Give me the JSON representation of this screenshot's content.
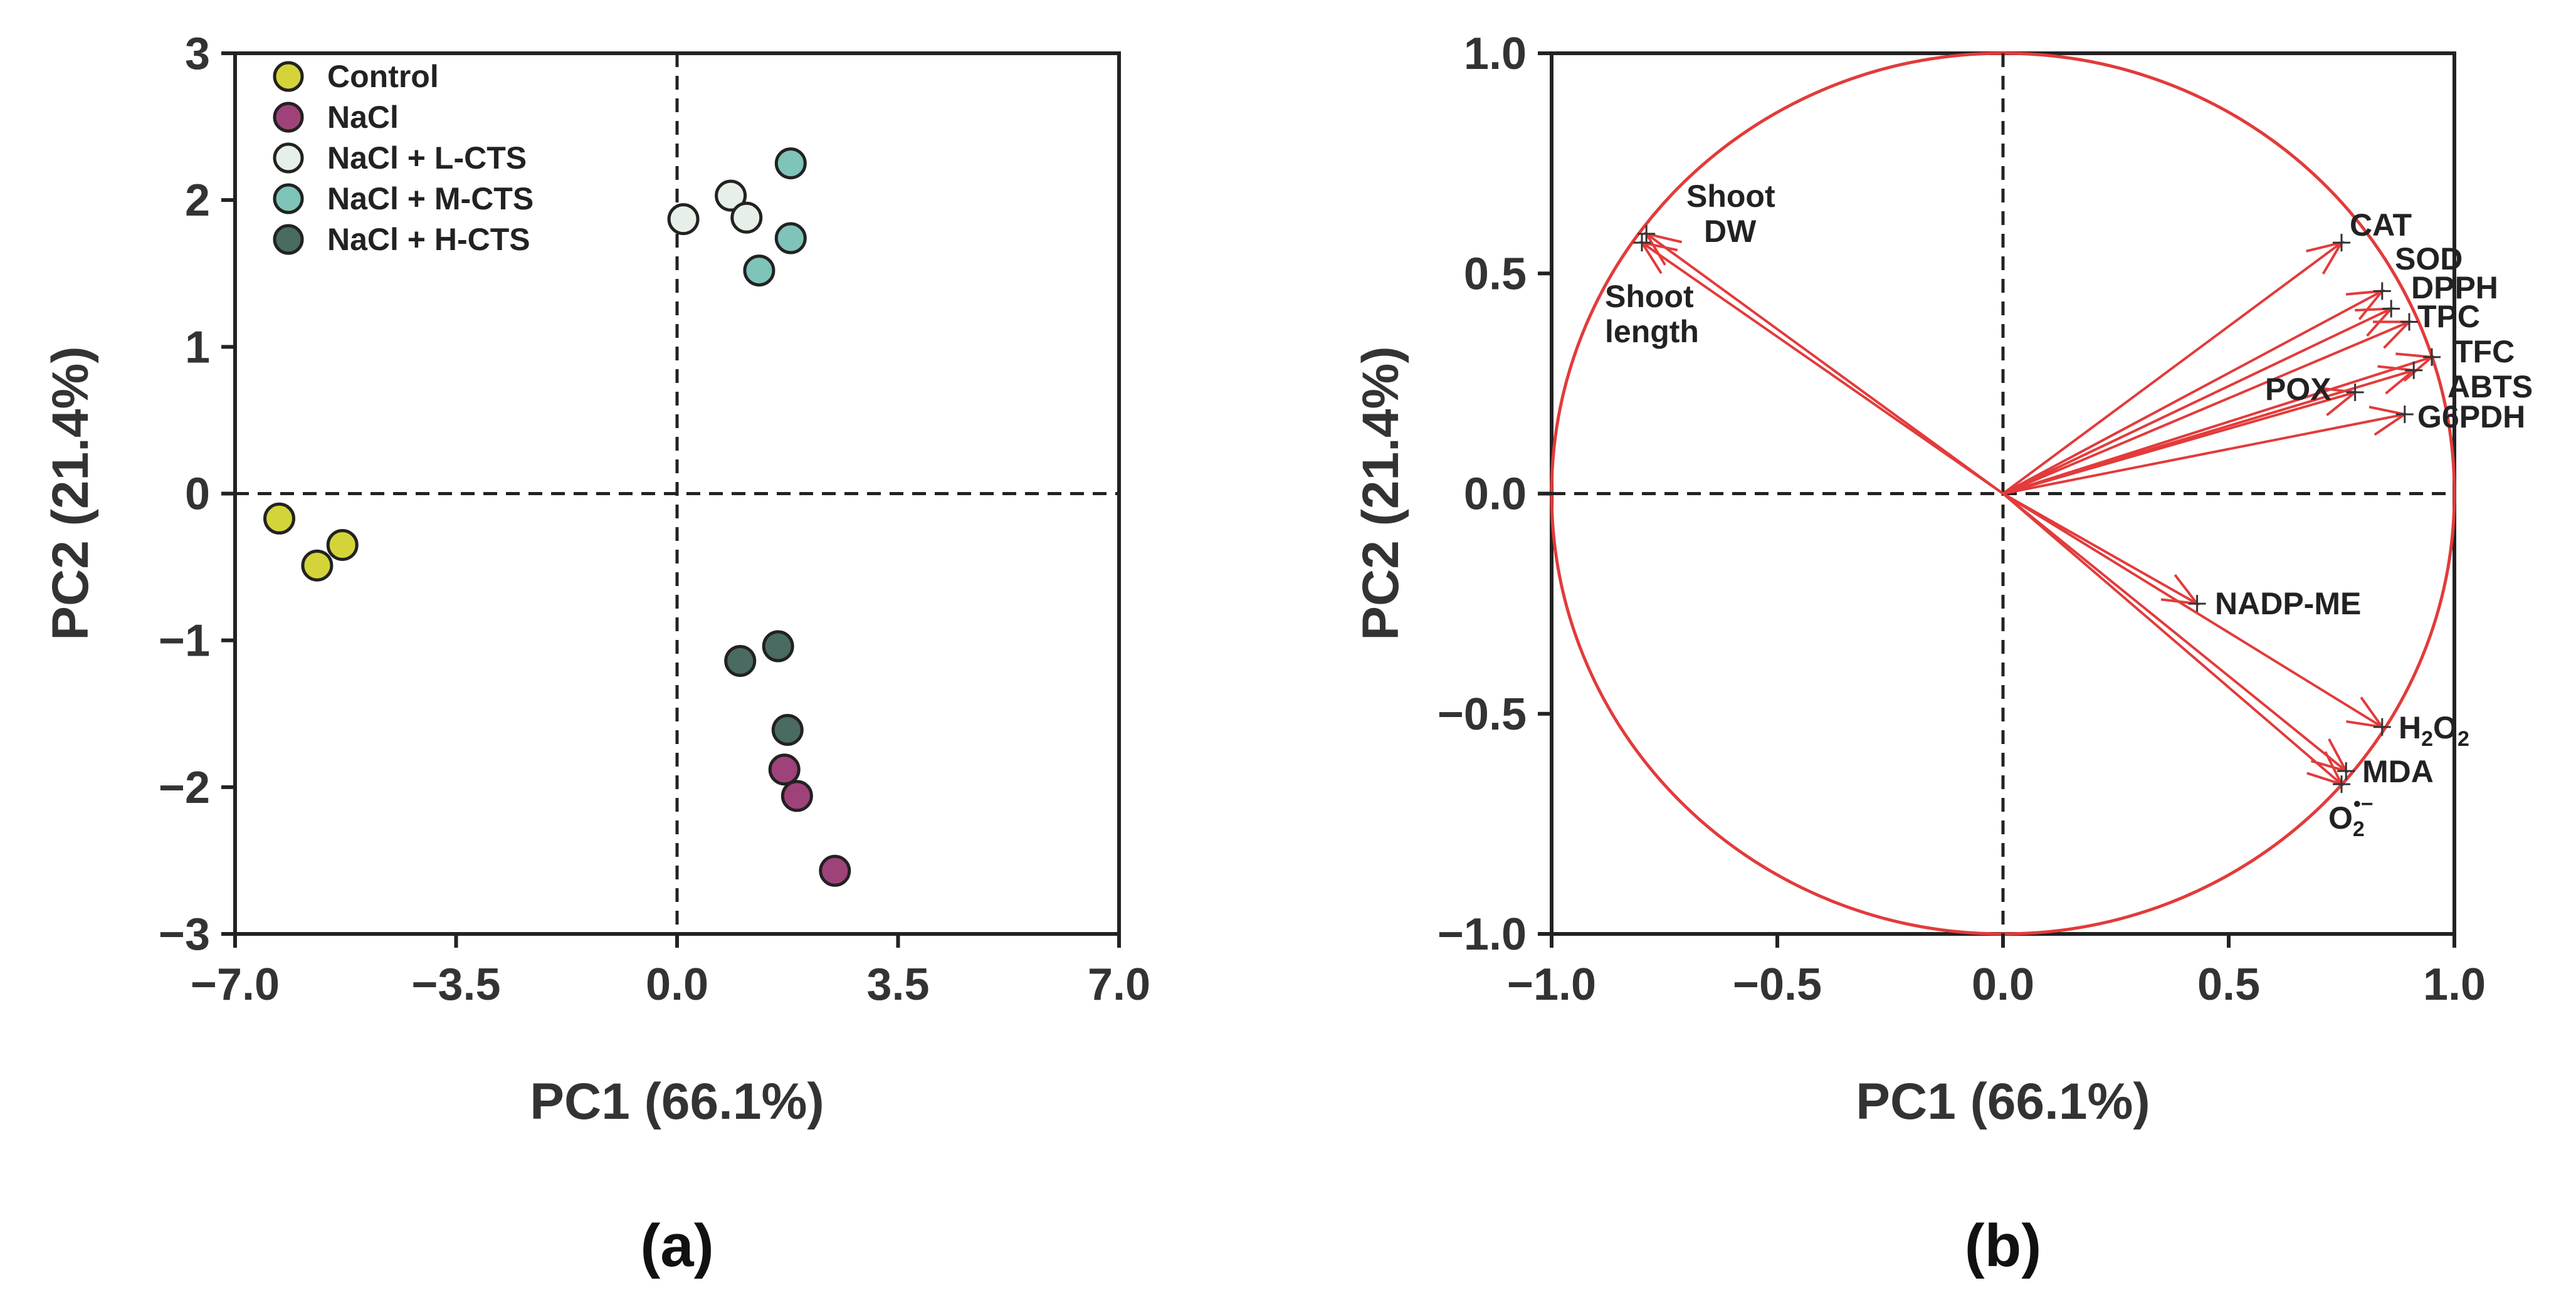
{
  "chart_data": [
    {
      "type": "scatter",
      "panel_label": "(a)",
      "xlabel": "PC1 (66.1%)",
      "ylabel": "PC2 (21.4%)",
      "xlim": [
        -7.0,
        7.0
      ],
      "ylim": [
        -3,
        3
      ],
      "xticks": [
        -7.0,
        -3.5,
        0.0,
        3.5,
        7.0
      ],
      "xtick_labels": [
        "−7.0",
        "−3.5",
        "0.0",
        "3.5",
        "7.0"
      ],
      "yticks": [
        -3,
        -2,
        -1,
        0,
        1,
        2,
        3
      ],
      "ytick_labels": [
        "−3",
        "−2",
        "−1",
        "0",
        "1",
        "2",
        "3"
      ],
      "legend_position": "top-left",
      "series": [
        {
          "name": "Control",
          "color": "#d4d43a",
          "points": [
            [
              -6.3,
              -0.17
            ],
            [
              -5.7,
              -0.49
            ],
            [
              -5.3,
              -0.35
            ]
          ]
        },
        {
          "name": "NaCl",
          "color": "#a0427a",
          "points": [
            [
              1.7,
              -1.88
            ],
            [
              1.9,
              -2.06
            ],
            [
              2.5,
              -2.57
            ]
          ]
        },
        {
          "name": "NaCl + L-CTS",
          "color": "#e6efe8",
          "points": [
            [
              0.1,
              1.87
            ],
            [
              0.85,
              2.03
            ],
            [
              1.1,
              1.88
            ]
          ]
        },
        {
          "name": "NaCl + M-CTS",
          "color": "#7fc4b8",
          "points": [
            [
              1.8,
              2.25
            ],
            [
              1.8,
              1.74
            ],
            [
              1.3,
              1.52
            ]
          ]
        },
        {
          "name": "NaCl + H-CTS",
          "color": "#4a6b62",
          "points": [
            [
              1.6,
              -1.04
            ],
            [
              1.0,
              -1.14
            ],
            [
              1.75,
              -1.61
            ]
          ]
        }
      ]
    },
    {
      "type": "scatter",
      "subtype": "loading-plot",
      "panel_label": "(b)",
      "xlabel": "PC1 (66.1%)",
      "ylabel": "PC2 (21.4%)",
      "xlim": [
        -1.0,
        1.0
      ],
      "ylim": [
        -1.0,
        1.0
      ],
      "xticks": [
        -1.0,
        -0.5,
        0.0,
        0.5,
        1.0
      ],
      "xtick_labels": [
        "−1.0",
        "−0.5",
        "0.0",
        "0.5",
        "1.0"
      ],
      "yticks": [
        -1.0,
        -0.5,
        0.0,
        0.5,
        1.0
      ],
      "ytick_labels": [
        "−1.0",
        "−0.5",
        "0.0",
        "0.5",
        "1.0"
      ],
      "unit_circle": true,
      "vectors": [
        {
          "name": "Shoot DW",
          "x": -0.79,
          "y": 0.59
        },
        {
          "name": "Shoot length",
          "x": -0.8,
          "y": 0.57
        },
        {
          "name": "CAT",
          "x": 0.75,
          "y": 0.57
        },
        {
          "name": "SOD",
          "x": 0.84,
          "y": 0.46
        },
        {
          "name": "DPPH",
          "x": 0.86,
          "y": 0.42
        },
        {
          "name": "TPC",
          "x": 0.9,
          "y": 0.39
        },
        {
          "name": "TFC",
          "x": 0.95,
          "y": 0.31
        },
        {
          "name": "ABTS",
          "x": 0.91,
          "y": 0.28
        },
        {
          "name": "POX",
          "x": 0.78,
          "y": 0.23
        },
        {
          "name": "G6PDH",
          "x": 0.89,
          "y": 0.18
        },
        {
          "name": "NADP-ME",
          "x": 0.43,
          "y": -0.25
        },
        {
          "name": "H2O2",
          "x": 0.84,
          "y": -0.53
        },
        {
          "name": "MDA",
          "x": 0.76,
          "y": -0.63
        },
        {
          "name": "O2•−",
          "x": 0.75,
          "y": -0.66
        }
      ],
      "vector_labels": {
        "shoot_dw": [
          "Shoot",
          "DW"
        ],
        "shoot_length": [
          "Shoot",
          "length"
        ],
        "cat": "CAT",
        "sod": "SOD",
        "dpph": "DPPH",
        "tpc": "TPC",
        "tfc": "TFC",
        "abts": "ABTS",
        "pox": "POX",
        "g6pdh": "G6PDH",
        "nadp_me": "NADP-ME",
        "h2o2": {
          "base": "H",
          "sub1": "2",
          "mid": "O",
          "sub2": "2"
        },
        "mda": "MDA",
        "o2": {
          "base": "O",
          "sub": "2",
          "sup": "•−"
        }
      }
    }
  ],
  "colors": {
    "vector": "#e23b3b",
    "axis": "#222222",
    "text": "#333333"
  }
}
